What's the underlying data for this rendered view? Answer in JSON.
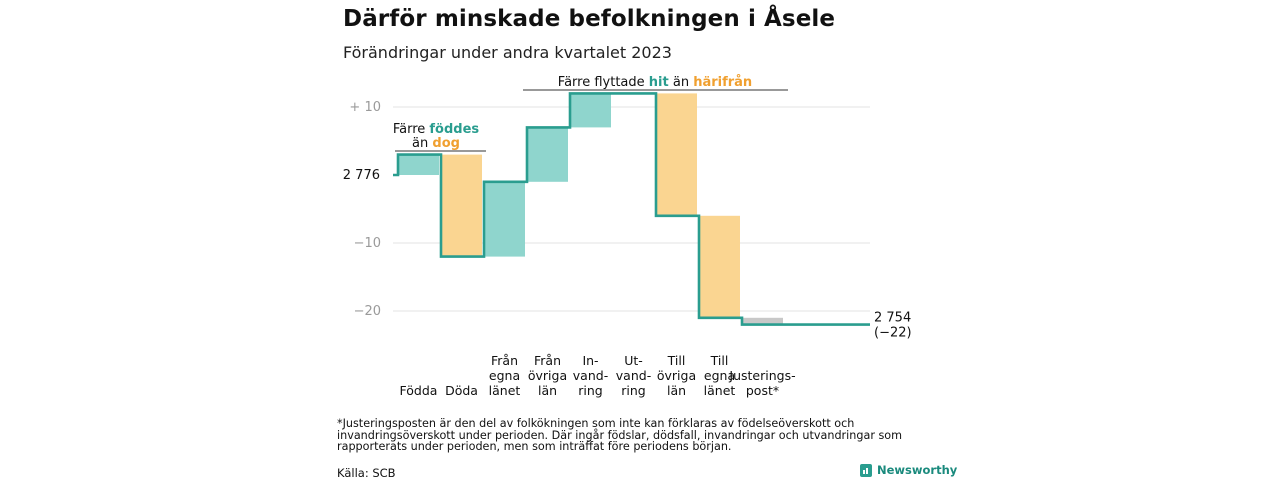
{
  "title": "Därför minskade befolkningen i Åsele",
  "subtitle": "Förändringar under andra kvartalet 2023",
  "colors": {
    "teal": "#2a9d8f",
    "teal_light": "#8fd5cd",
    "orange": "#f0a030",
    "orange_light": "#fad591",
    "gray": "#c8c8c8",
    "grid": "#e3e3e3"
  },
  "chart_data": {
    "type": "waterfall",
    "start_value": 2776,
    "start_label": "2 776",
    "end_value": 2754,
    "end_label": "2 754",
    "end_change_label": "(−22)",
    "ylim": [
      -23,
      13
    ],
    "yticks": [
      {
        "value": 10,
        "label": "+ 10"
      },
      {
        "value": 0,
        "label": "2 776"
      },
      {
        "value": -10,
        "label": "−10"
      },
      {
        "value": -20,
        "label": "−20"
      }
    ],
    "grid": true,
    "steps": [
      {
        "label": [
          "Födda"
        ],
        "change": 3,
        "color": "teal"
      },
      {
        "label": [
          "Döda"
        ],
        "change": -15,
        "color": "orange"
      },
      {
        "label": [
          "Från",
          "egna",
          "länet"
        ],
        "change": 11,
        "color": "teal"
      },
      {
        "label": [
          "Från",
          "övriga",
          "län"
        ],
        "change": 8,
        "color": "teal"
      },
      {
        "label": [
          "In-",
          "vand-",
          "ring"
        ],
        "change": 5,
        "color": "teal"
      },
      {
        "label": [
          "Ut-",
          "vand-",
          "ring"
        ],
        "change": 0,
        "color": "orange"
      },
      {
        "label": [
          "Till",
          "övriga",
          "län"
        ],
        "change": -18,
        "color": "orange"
      },
      {
        "label": [
          "Till",
          "egna",
          "länet"
        ],
        "change": -15,
        "color": "orange"
      },
      {
        "label": [
          "Justerings-",
          "post*"
        ],
        "change": -1,
        "color": "gray"
      }
    ],
    "annotations": [
      {
        "parts": [
          {
            "text": "Färre ",
            "style": "plain"
          },
          {
            "text": "föddes",
            "style": "teal"
          }
        ],
        "parts2": [
          {
            "text": "än ",
            "style": "plain"
          },
          {
            "text": "dog",
            "style": "orange"
          }
        ]
      },
      {
        "parts": [
          {
            "text": "Färre flyttade ",
            "style": "plain"
          },
          {
            "text": "hit",
            "style": "teal"
          },
          {
            "text": "  än ",
            "style": "plain"
          },
          {
            "text": "härifrån",
            "style": "orange"
          }
        ]
      }
    ]
  },
  "footnote": "*Justeringsposten är den del av folkökningen som inte kan förklaras av födelseöverskott och invandringsöverskott under perioden. Där ingår födslar, dödsfall, invandringar och utvandringar som rapporterats under perioden, men som inträffat före periodens början.",
  "source": "Källa: SCB",
  "brand": "Newsworthy"
}
